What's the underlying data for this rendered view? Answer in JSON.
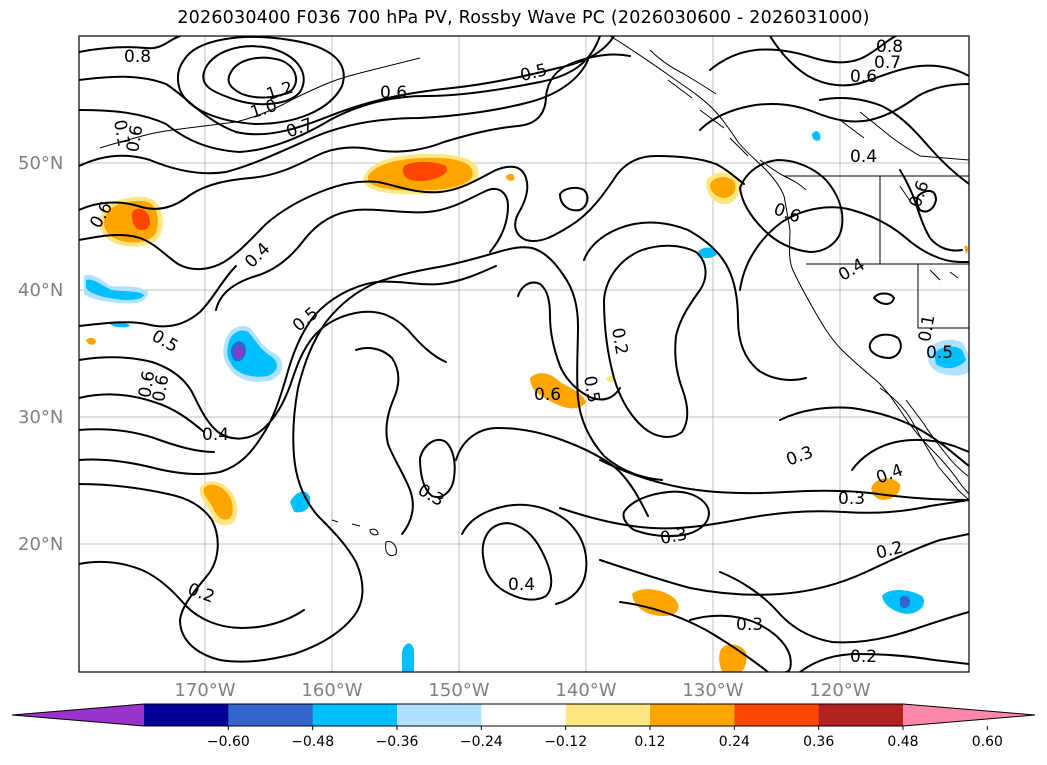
{
  "title": "2026030400 F036 700 hPa PV, Rossby Wave PC (2026030600 - 2026031000)",
  "lat_labels": [
    "50°N",
    "40°N",
    "30°N",
    "20°N"
  ],
  "lon_labels": [
    "170°W",
    "160°W",
    "150°W",
    "140°W",
    "130°W",
    "120°W"
  ],
  "contour_labels": [
    "0.8",
    "1.0",
    "1.2",
    "0.7",
    "0.6",
    "0.5",
    "0.8",
    "0.7",
    "0.6",
    "0.4",
    "0.6",
    "0.6",
    "0.4",
    "0.6",
    "0.4",
    "0.5",
    "0.5",
    "0.6",
    "0.6",
    "0.4",
    "0.2",
    "0.5",
    "0.6",
    "0.3",
    "0.3",
    "0.3",
    "0.4",
    "0.3",
    "0.2",
    "0.2",
    "0.3",
    "0.2",
    "0.4",
    "0.5",
    "0.6",
    "0.1",
    "0.1"
  ],
  "colorbar": {
    "ticks": [
      "−0.60",
      "−0.48",
      "−0.36",
      "−0.24",
      "−0.12",
      "0.12",
      "0.24",
      "0.36",
      "0.48",
      "0.60"
    ],
    "colors": [
      "#9933cc",
      "#000099",
      "#3366cc",
      "#00bfff",
      "#b0e2ff",
      "#ffffff",
      "#ffe680",
      "#ffa500",
      "#ff4500",
      "#b22222",
      "#ff88aa"
    ]
  }
}
